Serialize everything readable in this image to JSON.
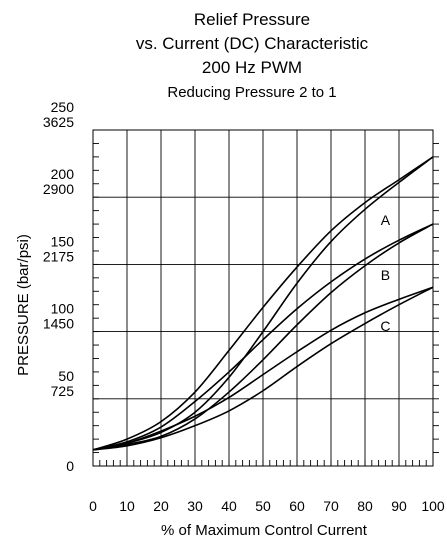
{
  "chart_data": {
    "type": "line",
    "title_lines": [
      "Relief Pressure",
      "vs. Current (DC) Characteristic",
      "200 Hz PWM"
    ],
    "subtitle": "Reducing Pressure 2 to 1",
    "xlabel": "% of Maximum Control Current",
    "ylabel": "PRESSURE (bar/psi)",
    "xlim": [
      0,
      100
    ],
    "ylim": [
      0,
      250
    ],
    "x_ticks": [
      0,
      10,
      20,
      30,
      40,
      50,
      60,
      70,
      80,
      90,
      100
    ],
    "x_tick_labels": [
      "0",
      "10",
      "20",
      "30",
      "40",
      "50",
      "60",
      "70",
      "80",
      "90",
      "100"
    ],
    "y_ticks": [
      {
        "value": 0,
        "bar": "0",
        "psi": ""
      },
      {
        "value": 50,
        "bar": "50",
        "psi": "725"
      },
      {
        "value": 100,
        "bar": "100",
        "psi": "1450"
      },
      {
        "value": 150,
        "bar": "150",
        "psi": "2175"
      },
      {
        "value": 200,
        "bar": "200",
        "psi": "2900"
      },
      {
        "value": 250,
        "bar": "250",
        "psi": "3625"
      }
    ],
    "series": [
      {
        "name": "A",
        "upper": {
          "x": [
            0,
            10,
            20,
            30,
            40,
            50,
            60,
            70,
            80,
            90,
            100
          ],
          "y": [
            12,
            20,
            33,
            55,
            86,
            118,
            148,
            175,
            196,
            213,
            230
          ]
        },
        "lower": {
          "x": [
            0,
            10,
            20,
            30,
            40,
            50,
            60,
            70,
            80,
            90,
            100
          ],
          "y": [
            12,
            17,
            25,
            40,
            66,
            100,
            136,
            167,
            191,
            211,
            230
          ]
        },
        "label_at": [
          86,
          183
        ]
      },
      {
        "name": "B",
        "upper": {
          "x": [
            0,
            10,
            20,
            30,
            40,
            50,
            60,
            70,
            80,
            90,
            100
          ],
          "y": [
            12,
            18,
            29,
            48,
            70,
            94,
            117,
            137,
            154,
            168,
            180
          ]
        },
        "lower": {
          "x": [
            0,
            10,
            20,
            30,
            40,
            50,
            60,
            70,
            80,
            90,
            100
          ],
          "y": [
            12,
            16,
            22,
            35,
            55,
            79,
            105,
            129,
            149,
            166,
            180
          ]
        },
        "label_at": [
          86,
          142
        ]
      },
      {
        "name": "C",
        "upper": {
          "x": [
            0,
            10,
            20,
            30,
            40,
            50,
            60,
            70,
            80,
            90,
            100
          ],
          "y": [
            12,
            17,
            26,
            37,
            51,
            68,
            85,
            101,
            114,
            124,
            133
          ]
        },
        "lower": {
          "x": [
            0,
            10,
            20,
            30,
            40,
            50,
            60,
            70,
            80,
            90,
            100
          ],
          "y": [
            12,
            15,
            21,
            30,
            41,
            56,
            74,
            91,
            106,
            120,
            133
          ]
        },
        "label_at": [
          86,
          104
        ]
      }
    ],
    "grid": {
      "major_x_every": 10,
      "major_y_every": 50
    },
    "minor_tick_every": {
      "x": 2,
      "y": 10
    }
  }
}
